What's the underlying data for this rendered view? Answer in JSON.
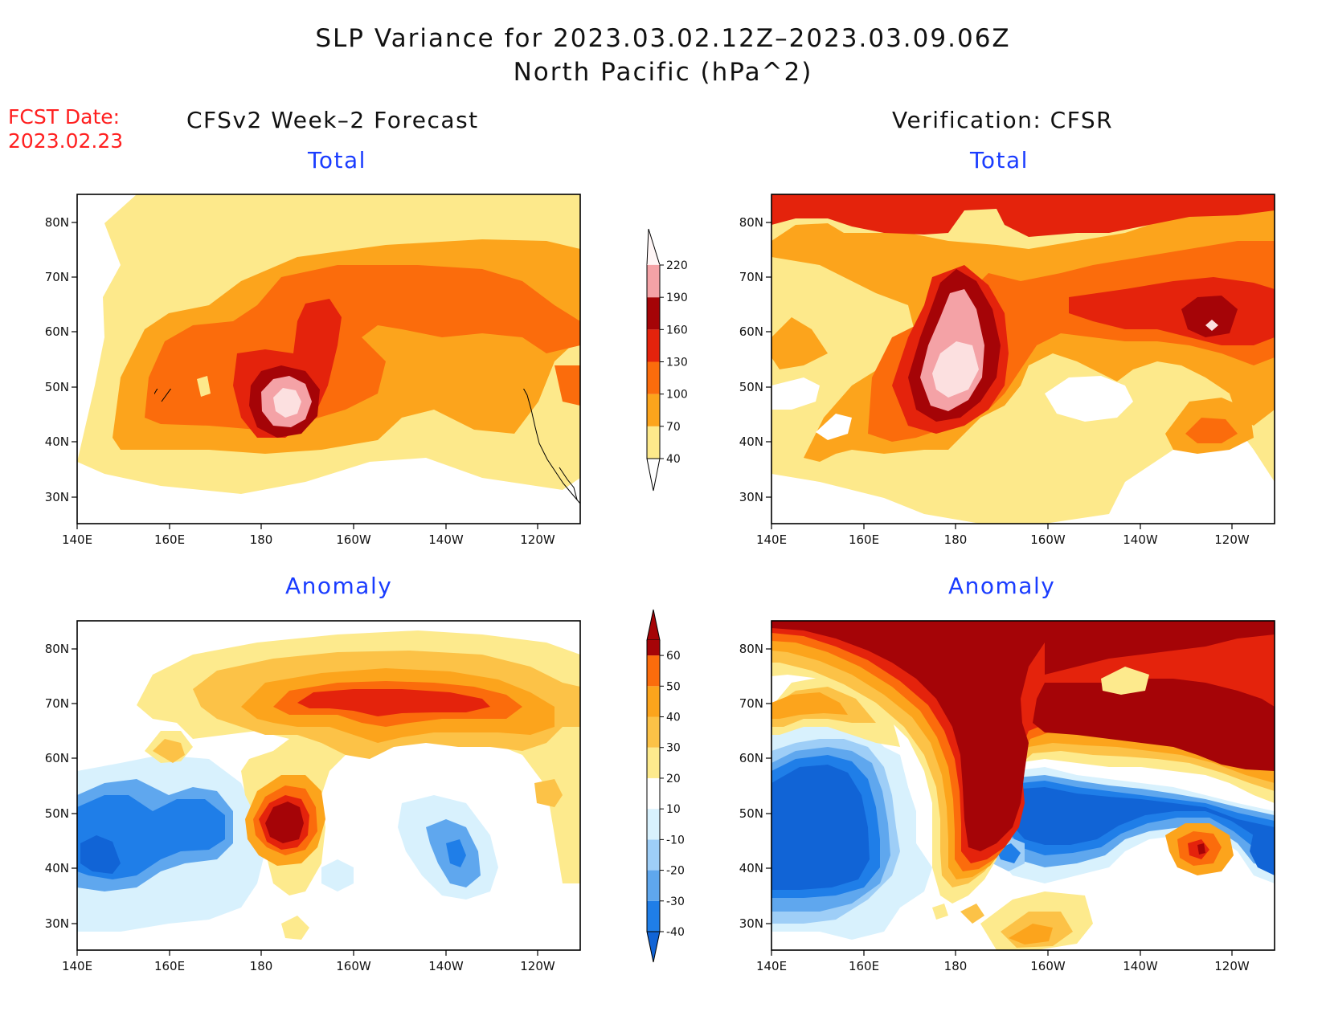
{
  "header": {
    "title_line1": "SLP Variance for 2023.03.02.12Z–2023.03.09.06Z",
    "title_line2": "North Pacific (hPa^2)",
    "fcst_label": "FCST Date:",
    "fcst_date": "2023.02.23",
    "left_column_title": "CFSv2 Week–2 Forecast",
    "right_column_title": "Verification: CFSR"
  },
  "panels": [
    {
      "id": "forecast-total",
      "title": "Total"
    },
    {
      "id": "verification-total",
      "title": "Total"
    },
    {
      "id": "forecast-anomaly",
      "title": "Anomaly"
    },
    {
      "id": "verification-anomaly",
      "title": "Anomaly"
    }
  ],
  "axes": {
    "lon_labels": [
      "140E",
      "160E",
      "180",
      "160W",
      "140W",
      "120W"
    ],
    "lat_labels": [
      "80N",
      "70N",
      "60N",
      "50N",
      "40N",
      "30N"
    ]
  },
  "colorbars": {
    "total": {
      "levels": [
        "40",
        "70",
        "100",
        "130",
        "160",
        "190",
        "220"
      ],
      "colors": [
        "#fde98b",
        "#fca41c",
        "#fb6c0c",
        "#e4230c",
        "#a50407",
        "#f4a2a6",
        "#fce0e0"
      ]
    },
    "anomaly": {
      "levels": [
        "-40",
        "-30",
        "-20",
        "-10",
        "10",
        "20",
        "30",
        "40",
        "50",
        "60"
      ],
      "colors": [
        "#1164d6",
        "#1f7ee8",
        "#5fa7ee",
        "#9ecef7",
        "#d8f1fd",
        "#ffffff",
        "#fdea8d",
        "#fcc247",
        "#fca41c",
        "#fb6c0c",
        "#e4230c",
        "#a50407"
      ]
    }
  }
}
